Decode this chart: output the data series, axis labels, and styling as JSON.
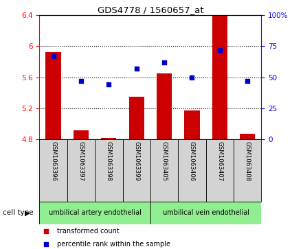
{
  "title": "GDS4778 / 1560657_at",
  "samples": [
    "GSM1063396",
    "GSM1063397",
    "GSM1063398",
    "GSM1063399",
    "GSM1063405",
    "GSM1063406",
    "GSM1063407",
    "GSM1063408"
  ],
  "transformed_count": [
    5.92,
    4.92,
    4.82,
    5.35,
    5.65,
    5.17,
    6.4,
    4.87
  ],
  "percentile_rank": [
    67,
    47,
    44,
    57,
    62,
    50,
    72,
    47
  ],
  "ylim_left": [
    4.8,
    6.4
  ],
  "ylim_right": [
    0,
    100
  ],
  "yticks_left": [
    4.8,
    5.2,
    5.6,
    6.0,
    6.4
  ],
  "yticks_right": [
    0,
    25,
    50,
    75,
    100
  ],
  "ytick_labels_left": [
    "4.8",
    "5.2",
    "5.6",
    "6",
    "6.4"
  ],
  "ytick_labels_right": [
    "0",
    "25",
    "50",
    "75",
    "100%"
  ],
  "bar_color": "#cc0000",
  "square_color": "#0000cc",
  "bar_bottom": 4.8,
  "group1_label": "umbilical artery endothelial",
  "group2_label": "umbilical vein endothelial",
  "group1_indices": [
    0,
    1,
    2,
    3
  ],
  "group2_indices": [
    4,
    5,
    6,
    7
  ],
  "cell_type_label": "cell type",
  "legend_bar_label": "transformed count",
  "legend_square_label": "percentile rank within the sample",
  "group_bg_color": "#90ee90",
  "sample_bg_color": "#d3d3d3",
  "bar_width": 0.55,
  "grid_lines": [
    5.2,
    5.6,
    6.0
  ],
  "hgrid_color": "black",
  "hgrid_linestyle": ":",
  "hgrid_linewidth": 0.8
}
